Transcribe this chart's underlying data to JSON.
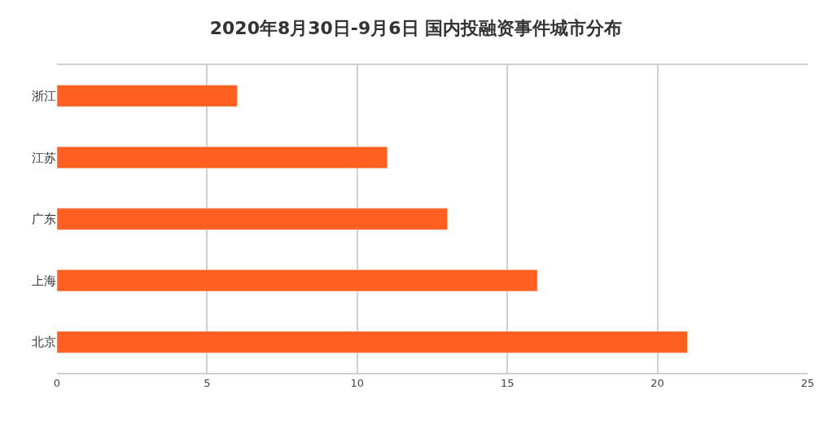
{
  "chart_data": {
    "type": "bar",
    "orientation": "horizontal",
    "title": "2020年8月30日-9月6日 国内投融资事件城市分布",
    "categories": [
      "浙江",
      "江苏",
      "广东",
      "上海",
      "北京"
    ],
    "values": [
      6,
      11,
      13,
      16,
      21
    ],
    "color": "#ff5f1f",
    "xlim": [
      0,
      25
    ],
    "xticks": [
      0,
      5,
      10,
      15,
      20,
      25
    ],
    "grid": "x"
  }
}
